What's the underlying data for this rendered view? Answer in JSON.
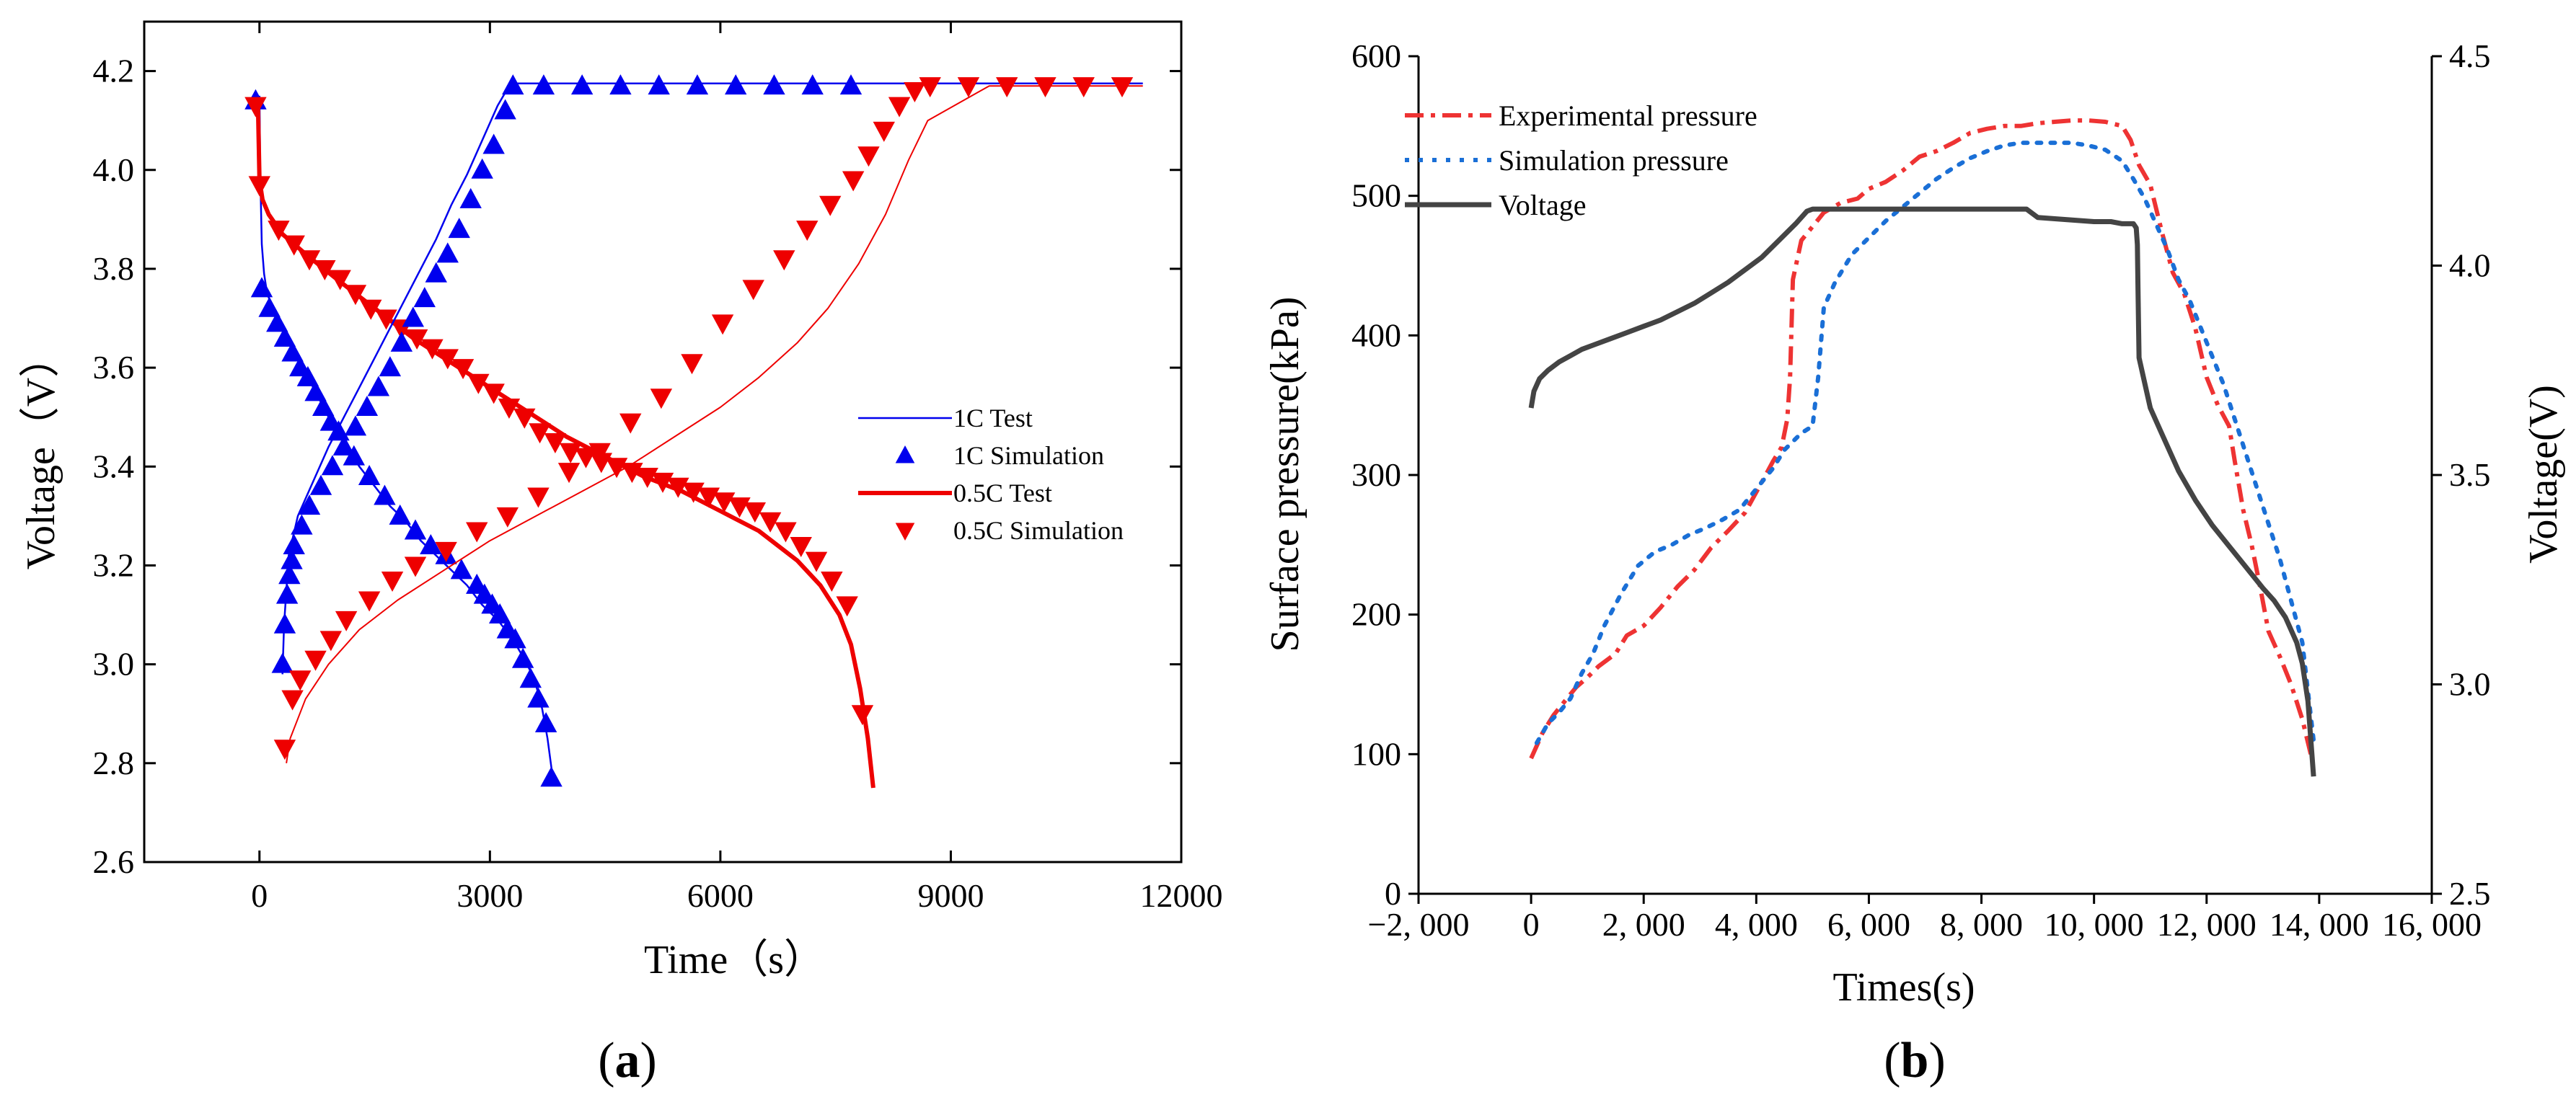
{
  "chart_data": [
    {
      "id": "a",
      "panel_label": {
        "open": "(",
        "letter": "a",
        "close": ")"
      },
      "type": "line",
      "title": "",
      "xlabel": "Time（s）",
      "ylabel": "Voltage（V）",
      "xlim": [
        -1500,
        12000
      ],
      "ylim": [
        2.6,
        4.3
      ],
      "xticks": [
        0,
        3000,
        6000,
        9000,
        12000
      ],
      "xtick_labels": [
        "0",
        "3000",
        "6000",
        "9000",
        "12000"
      ],
      "yticks": [
        2.6,
        2.8,
        3.0,
        3.2,
        3.4,
        3.6,
        3.8,
        4.0,
        4.2
      ],
      "ytick_labels": [
        "2.6",
        "2.8",
        "3.0",
        "3.2",
        "3.4",
        "3.6",
        "3.8",
        "4.0",
        "4.2"
      ],
      "grid": false,
      "legend_position": "right-middle",
      "colors": {
        "1C": "#0000ee",
        "0.5C": "#ee0000"
      },
      "series": [
        {
          "name": "1C Test",
          "legend": "1C Test",
          "kind": "line",
          "color": "#0000ee",
          "width": 2.5,
          "x": [
            0,
            10,
            30,
            60,
            100,
            200,
            300,
            500,
            700,
            900,
            1100,
            1300,
            1500,
            1700,
            1900,
            2100,
            2300,
            2500,
            2700,
            2900,
            3100,
            3300,
            3450,
            3580,
            3680,
            3750,
            3810
          ],
          "y": [
            4.15,
            4.0,
            3.85,
            3.79,
            3.75,
            3.71,
            3.68,
            3.62,
            3.56,
            3.5,
            3.45,
            3.4,
            3.36,
            3.32,
            3.29,
            3.25,
            3.22,
            3.19,
            3.16,
            3.12,
            3.09,
            3.05,
            3.01,
            2.97,
            2.91,
            2.85,
            2.78
          ]
        },
        {
          "name": "1C Simulation",
          "legend": "1C Simulation",
          "kind": "marker",
          "marker": "triangle-up",
          "color": "#0000ee",
          "x": [
            -50,
            30,
            130,
            230,
            330,
            430,
            530,
            630,
            730,
            830,
            930,
            1030,
            1230,
            1430,
            1630,
            1830,
            2030,
            2230,
            2430,
            2630,
            2830,
            2930,
            3030,
            3130,
            3230,
            3330,
            3430,
            3530,
            3630,
            3730,
            3800
          ],
          "y": [
            4.14,
            3.76,
            3.72,
            3.69,
            3.66,
            3.63,
            3.6,
            3.58,
            3.55,
            3.52,
            3.49,
            3.47,
            3.42,
            3.38,
            3.34,
            3.3,
            3.27,
            3.24,
            3.22,
            3.19,
            3.16,
            3.14,
            3.12,
            3.1,
            3.07,
            3.05,
            3.01,
            2.97,
            2.93,
            2.88,
            2.77
          ]
        },
        {
          "name": "0.5C Test",
          "legend": "0.5C Test",
          "kind": "line",
          "color": "#ee0000",
          "width": 6,
          "x": [
            -20,
            0,
            40,
            120,
            300,
            600,
            1000,
            1500,
            2000,
            2500,
            3000,
            3500,
            4000,
            4500,
            5000,
            5500,
            6000,
            6500,
            7000,
            7300,
            7550,
            7700,
            7820,
            7920,
            7990
          ],
          "y": [
            4.14,
            3.98,
            3.94,
            3.91,
            3.87,
            3.83,
            3.78,
            3.72,
            3.66,
            3.61,
            3.56,
            3.51,
            3.46,
            3.42,
            3.38,
            3.35,
            3.31,
            3.27,
            3.21,
            3.16,
            3.1,
            3.04,
            2.95,
            2.85,
            2.75
          ]
        },
        {
          "name": "0.5C Simulation",
          "legend": "0.5C Simulation",
          "kind": "marker",
          "marker": "triangle-down",
          "color": "#ee0000",
          "x": [
            -50,
            0,
            250,
            450,
            650,
            850,
            1050,
            1250,
            1450,
            1650,
            1850,
            2050,
            2250,
            2450,
            2650,
            2850,
            3050,
            3250,
            3450,
            3650,
            3850,
            4050,
            4250,
            4450,
            4650,
            4850,
            5050,
            5250,
            5450,
            5650,
            5850,
            6050,
            6250,
            6450,
            6650,
            6850,
            7050,
            7250,
            7450,
            7650,
            7850
          ],
          "y": [
            4.13,
            3.97,
            3.88,
            3.85,
            3.82,
            3.8,
            3.78,
            3.75,
            3.72,
            3.7,
            3.68,
            3.66,
            3.64,
            3.62,
            3.6,
            3.57,
            3.55,
            3.52,
            3.5,
            3.47,
            3.45,
            3.43,
            3.42,
            3.41,
            3.4,
            3.39,
            3.38,
            3.37,
            3.36,
            3.35,
            3.34,
            3.33,
            3.32,
            3.31,
            3.29,
            3.27,
            3.24,
            3.21,
            3.17,
            3.12,
            2.9
          ]
        },
        {
          "name": "1C Test (charge)",
          "legend": "",
          "kind": "line",
          "color": "#0000ee",
          "width": 2.5,
          "x": [
            300,
            320,
            380,
            500,
            700,
            900,
            1100,
            1300,
            1500,
            1700,
            1900,
            2100,
            2300,
            2500,
            2700,
            2900,
            3100,
            3250,
            3350,
            4000,
            6000,
            9000,
            11500
          ],
          "y": [
            2.98,
            3.08,
            3.22,
            3.3,
            3.37,
            3.44,
            3.5,
            3.56,
            3.62,
            3.68,
            3.74,
            3.8,
            3.86,
            3.93,
            3.99,
            4.06,
            4.13,
            4.17,
            4.175,
            4.175,
            4.175,
            4.175,
            4.175
          ]
        },
        {
          "name": "1C Simulation (charge)",
          "legend": "",
          "kind": "marker",
          "marker": "triangle-up",
          "color": "#0000ee",
          "x": [
            300,
            330,
            360,
            390,
            420,
            450,
            550,
            650,
            800,
            950,
            1100,
            1250,
            1400,
            1550,
            1700,
            1850,
            2000,
            2150,
            2300,
            2450,
            2600,
            2750,
            2900,
            3050,
            3200,
            3300,
            3700,
            4200,
            4700,
            5200,
            5700,
            6200,
            6700,
            7200,
            7700
          ],
          "y": [
            3.0,
            3.08,
            3.14,
            3.18,
            3.21,
            3.24,
            3.28,
            3.32,
            3.36,
            3.4,
            3.44,
            3.48,
            3.52,
            3.56,
            3.6,
            3.65,
            3.7,
            3.74,
            3.79,
            3.83,
            3.88,
            3.94,
            4.0,
            4.05,
            4.12,
            4.17,
            4.17,
            4.17,
            4.17,
            4.17,
            4.17,
            4.17,
            4.17,
            4.17,
            4.17
          ]
        },
        {
          "name": "0.5C Test (charge)",
          "legend": "",
          "kind": "line",
          "color": "#ee0000",
          "width": 2,
          "x": [
            350,
            400,
            600,
            900,
            1300,
            1800,
            2400,
            3000,
            3600,
            4200,
            4800,
            5400,
            6000,
            6500,
            7000,
            7400,
            7800,
            8150,
            8450,
            8700,
            9500,
            10500,
            11500
          ],
          "y": [
            2.8,
            2.85,
            2.93,
            3.0,
            3.07,
            3.13,
            3.19,
            3.25,
            3.3,
            3.35,
            3.4,
            3.46,
            3.52,
            3.58,
            3.65,
            3.72,
            3.81,
            3.91,
            4.02,
            4.1,
            4.17,
            4.17,
            4.17
          ]
        },
        {
          "name": "0.5C Simulation (charge)",
          "legend": "",
          "kind": "marker",
          "marker": "triangle-down",
          "color": "#ee0000",
          "x": [
            330,
            430,
            530,
            730,
            930,
            1130,
            1430,
            1730,
            2030,
            2430,
            2830,
            3230,
            3630,
            4030,
            4430,
            4830,
            5230,
            5630,
            6030,
            6430,
            6830,
            7130,
            7430,
            7730,
            7930,
            8130,
            8330,
            8530,
            8730,
            9230,
            9730,
            10230,
            10730,
            11230
          ],
          "y": [
            2.83,
            2.93,
            2.97,
            3.01,
            3.05,
            3.09,
            3.13,
            3.17,
            3.2,
            3.23,
            3.27,
            3.3,
            3.34,
            3.39,
            3.43,
            3.49,
            3.54,
            3.61,
            3.69,
            3.76,
            3.82,
            3.88,
            3.93,
            3.98,
            4.03,
            4.08,
            4.13,
            4.16,
            4.17,
            4.17,
            4.17,
            4.17,
            4.17,
            4.17
          ]
        }
      ]
    },
    {
      "id": "b",
      "panel_label": {
        "open": "(",
        "letter": "b",
        "close": ")"
      },
      "type": "line",
      "title": "",
      "xlabel": "Times(s)",
      "ylabel": "Surface pressure(kPa)",
      "y2label": "Voltage(V)",
      "xlim": [
        -2000,
        16000
      ],
      "ylim": [
        0,
        600
      ],
      "y2lim": [
        2.5,
        4.5
      ],
      "xticks": [
        -2000,
        0,
        2000,
        4000,
        6000,
        8000,
        10000,
        12000,
        14000,
        16000
      ],
      "xtick_labels": [
        "−2, 000",
        "0",
        "2, 000",
        "4, 000",
        "6, 000",
        "8, 000",
        "10, 000",
        "12, 000",
        "14, 000",
        "16, 000"
      ],
      "yticks": [
        0,
        100,
        200,
        300,
        400,
        500,
        600
      ],
      "ytick_labels": [
        "0",
        "100",
        "200",
        "300",
        "400",
        "500",
        "600"
      ],
      "y2ticks": [
        2.5,
        3.0,
        3.5,
        4.0,
        4.5
      ],
      "y2tick_labels": [
        "2.5",
        "3.0",
        "3.5",
        "4.0",
        "4.5"
      ],
      "grid": false,
      "legend_position": "top-left",
      "series": [
        {
          "name": "Experimental pressure",
          "legend": "Experimental pressure",
          "axis": "left",
          "dash": "dashdot",
          "color": "#ee3333",
          "x": [
            0,
            200,
            400,
            600,
            800,
            1000,
            1200,
            1500,
            1700,
            2000,
            2300,
            2600,
            2900,
            3200,
            3500,
            3800,
            4100,
            4300,
            4450,
            4550,
            4600,
            4650,
            4800,
            5000,
            5200,
            5500,
            5800,
            6000,
            6300,
            6600,
            6900,
            7200,
            7500,
            7800,
            8100,
            8400,
            8700,
            9000,
            9300,
            9600,
            9900,
            10200,
            10500,
            10650,
            10800,
            11000,
            11200,
            11400,
            11600,
            11800,
            12000,
            12200,
            12400,
            12500,
            12650,
            12800,
            12950,
            13100,
            13300,
            13500,
            13700,
            13850
          ],
          "y": [
            97,
            115,
            128,
            138,
            148,
            155,
            163,
            172,
            185,
            192,
            205,
            220,
            232,
            248,
            260,
            273,
            295,
            310,
            320,
            340,
            370,
            440,
            468,
            478,
            488,
            495,
            498,
            505,
            510,
            518,
            528,
            532,
            538,
            545,
            548,
            550,
            550,
            552,
            553,
            554,
            554,
            553,
            550,
            540,
            522,
            508,
            475,
            445,
            430,
            405,
            370,
            350,
            335,
            310,
            275,
            250,
            220,
            188,
            170,
            150,
            125,
            100
          ]
        },
        {
          "name": "Simulation pressure",
          "legend": "Simulation pressure",
          "axis": "left",
          "dash": "dot",
          "color": "#1a6fd6",
          "x": [
            100,
            200,
            300,
            500,
            700,
            900,
            1100,
            1300,
            1600,
            1900,
            2200,
            2500,
            2800,
            3100,
            3400,
            3700,
            4000,
            4300,
            4500,
            4800,
            5000,
            5100,
            5200,
            5400,
            5700,
            6000,
            6300,
            6600,
            6900,
            7200,
            7500,
            7800,
            8100,
            8400,
            8700,
            9000,
            9300,
            9600,
            9900,
            10200,
            10500,
            10700,
            10900,
            11100,
            11300,
            11500,
            11700,
            11900,
            12100,
            12300,
            12500,
            12700,
            12900,
            13100,
            13300,
            13500,
            13700,
            13900
          ],
          "y": [
            108,
            115,
            122,
            130,
            140,
            158,
            172,
            192,
            215,
            235,
            245,
            250,
            257,
            262,
            268,
            275,
            290,
            305,
            318,
            330,
            335,
            370,
            420,
            438,
            458,
            470,
            482,
            492,
            502,
            512,
            520,
            527,
            532,
            536,
            538,
            538,
            538,
            538,
            536,
            533,
            525,
            512,
            498,
            480,
            462,
            440,
            425,
            405,
            385,
            365,
            340,
            315,
            290,
            265,
            240,
            210,
            180,
            110
          ]
        },
        {
          "name": "Voltage",
          "legend": "Voltage",
          "axis": "right",
          "dash": "solid",
          "color": "#444444",
          "x": [
            0,
            50,
            150,
            300,
            500,
            700,
            900,
            1100,
            1400,
            1700,
            2000,
            2300,
            2600,
            2900,
            3200,
            3500,
            3800,
            4100,
            4400,
            4700,
            4900,
            5000,
            5500,
            6000,
            6500,
            7000,
            7500,
            8000,
            8500,
            8800,
            9000,
            9500,
            10000,
            10300,
            10500,
            10700,
            10750,
            10770,
            10780,
            10800,
            10900,
            11000,
            11200,
            11500,
            11800,
            12100,
            12400,
            12700,
            13000,
            13200,
            13400,
            13600,
            13700,
            13800,
            13900
          ],
          "y": [
            3.66,
            3.7,
            3.73,
            3.75,
            3.77,
            3.785,
            3.8,
            3.81,
            3.825,
            3.84,
            3.855,
            3.87,
            3.89,
            3.91,
            3.935,
            3.96,
            3.99,
            4.02,
            4.06,
            4.1,
            4.13,
            4.135,
            4.135,
            4.135,
            4.135,
            4.135,
            4.135,
            4.135,
            4.135,
            4.135,
            4.115,
            4.11,
            4.105,
            4.105,
            4.1,
            4.1,
            4.09,
            4.05,
            3.95,
            3.78,
            3.72,
            3.66,
            3.6,
            3.51,
            3.44,
            3.38,
            3.33,
            3.28,
            3.23,
            3.2,
            3.16,
            3.1,
            3.05,
            2.96,
            2.78
          ]
        }
      ]
    }
  ]
}
